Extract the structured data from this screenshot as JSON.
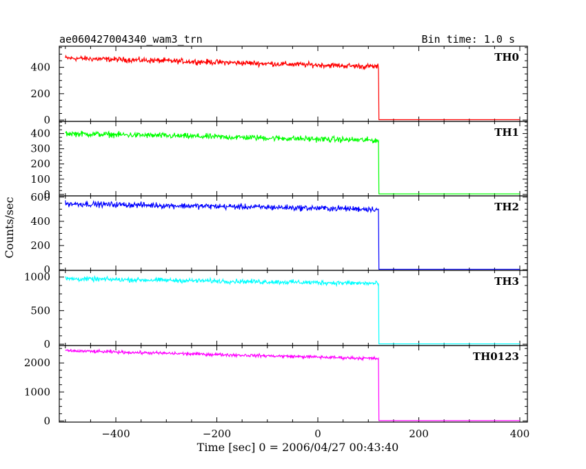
{
  "chart_data": {
    "type": "line",
    "title": "ae060427004340_wam3_trn",
    "subtitle": "Bin time: 1.0 s",
    "xlabel": "Time [sec] 0 = 2006/04/27 00:43:40",
    "ylabel": "Counts/sec",
    "xlim": [
      -512,
      415
    ],
    "x_ticks": [
      -400,
      -200,
      0,
      200,
      400
    ],
    "bin_time_s": 1.0,
    "drop_time": 120,
    "panels": [
      {
        "name": "TH0",
        "color": "#ff0000",
        "ylim": [
          -10,
          560
        ],
        "y_ticks": [
          0,
          200,
          400
        ],
        "level_start": 470,
        "level_end": 405,
        "noise": 30,
        "after": 3
      },
      {
        "name": "TH1",
        "color": "#00ff00",
        "ylim": [
          -10,
          480
        ],
        "y_ticks": [
          0,
          100,
          200,
          300,
          400
        ],
        "level_start": 400,
        "level_end": 355,
        "noise": 28,
        "after": 3
      },
      {
        "name": "TH2",
        "color": "#0000ff",
        "ylim": [
          -5,
          610
        ],
        "y_ticks": [
          0,
          200,
          400,
          600
        ],
        "level_start": 545,
        "level_end": 500,
        "noise": 35,
        "after": 4
      },
      {
        "name": "TH3",
        "color": "#00ffff",
        "ylim": [
          -20,
          1100
        ],
        "y_ticks": [
          0,
          500,
          1000
        ],
        "level_start": 975,
        "level_end": 905,
        "noise": 50,
        "after": 5
      },
      {
        "name": "TH0123",
        "color": "#ff00ff",
        "ylim": [
          -40,
          2600
        ],
        "y_ticks": [
          0,
          1000,
          2000
        ],
        "level_start": 2420,
        "level_end": 2150,
        "noise": 80,
        "after": 10
      }
    ]
  }
}
